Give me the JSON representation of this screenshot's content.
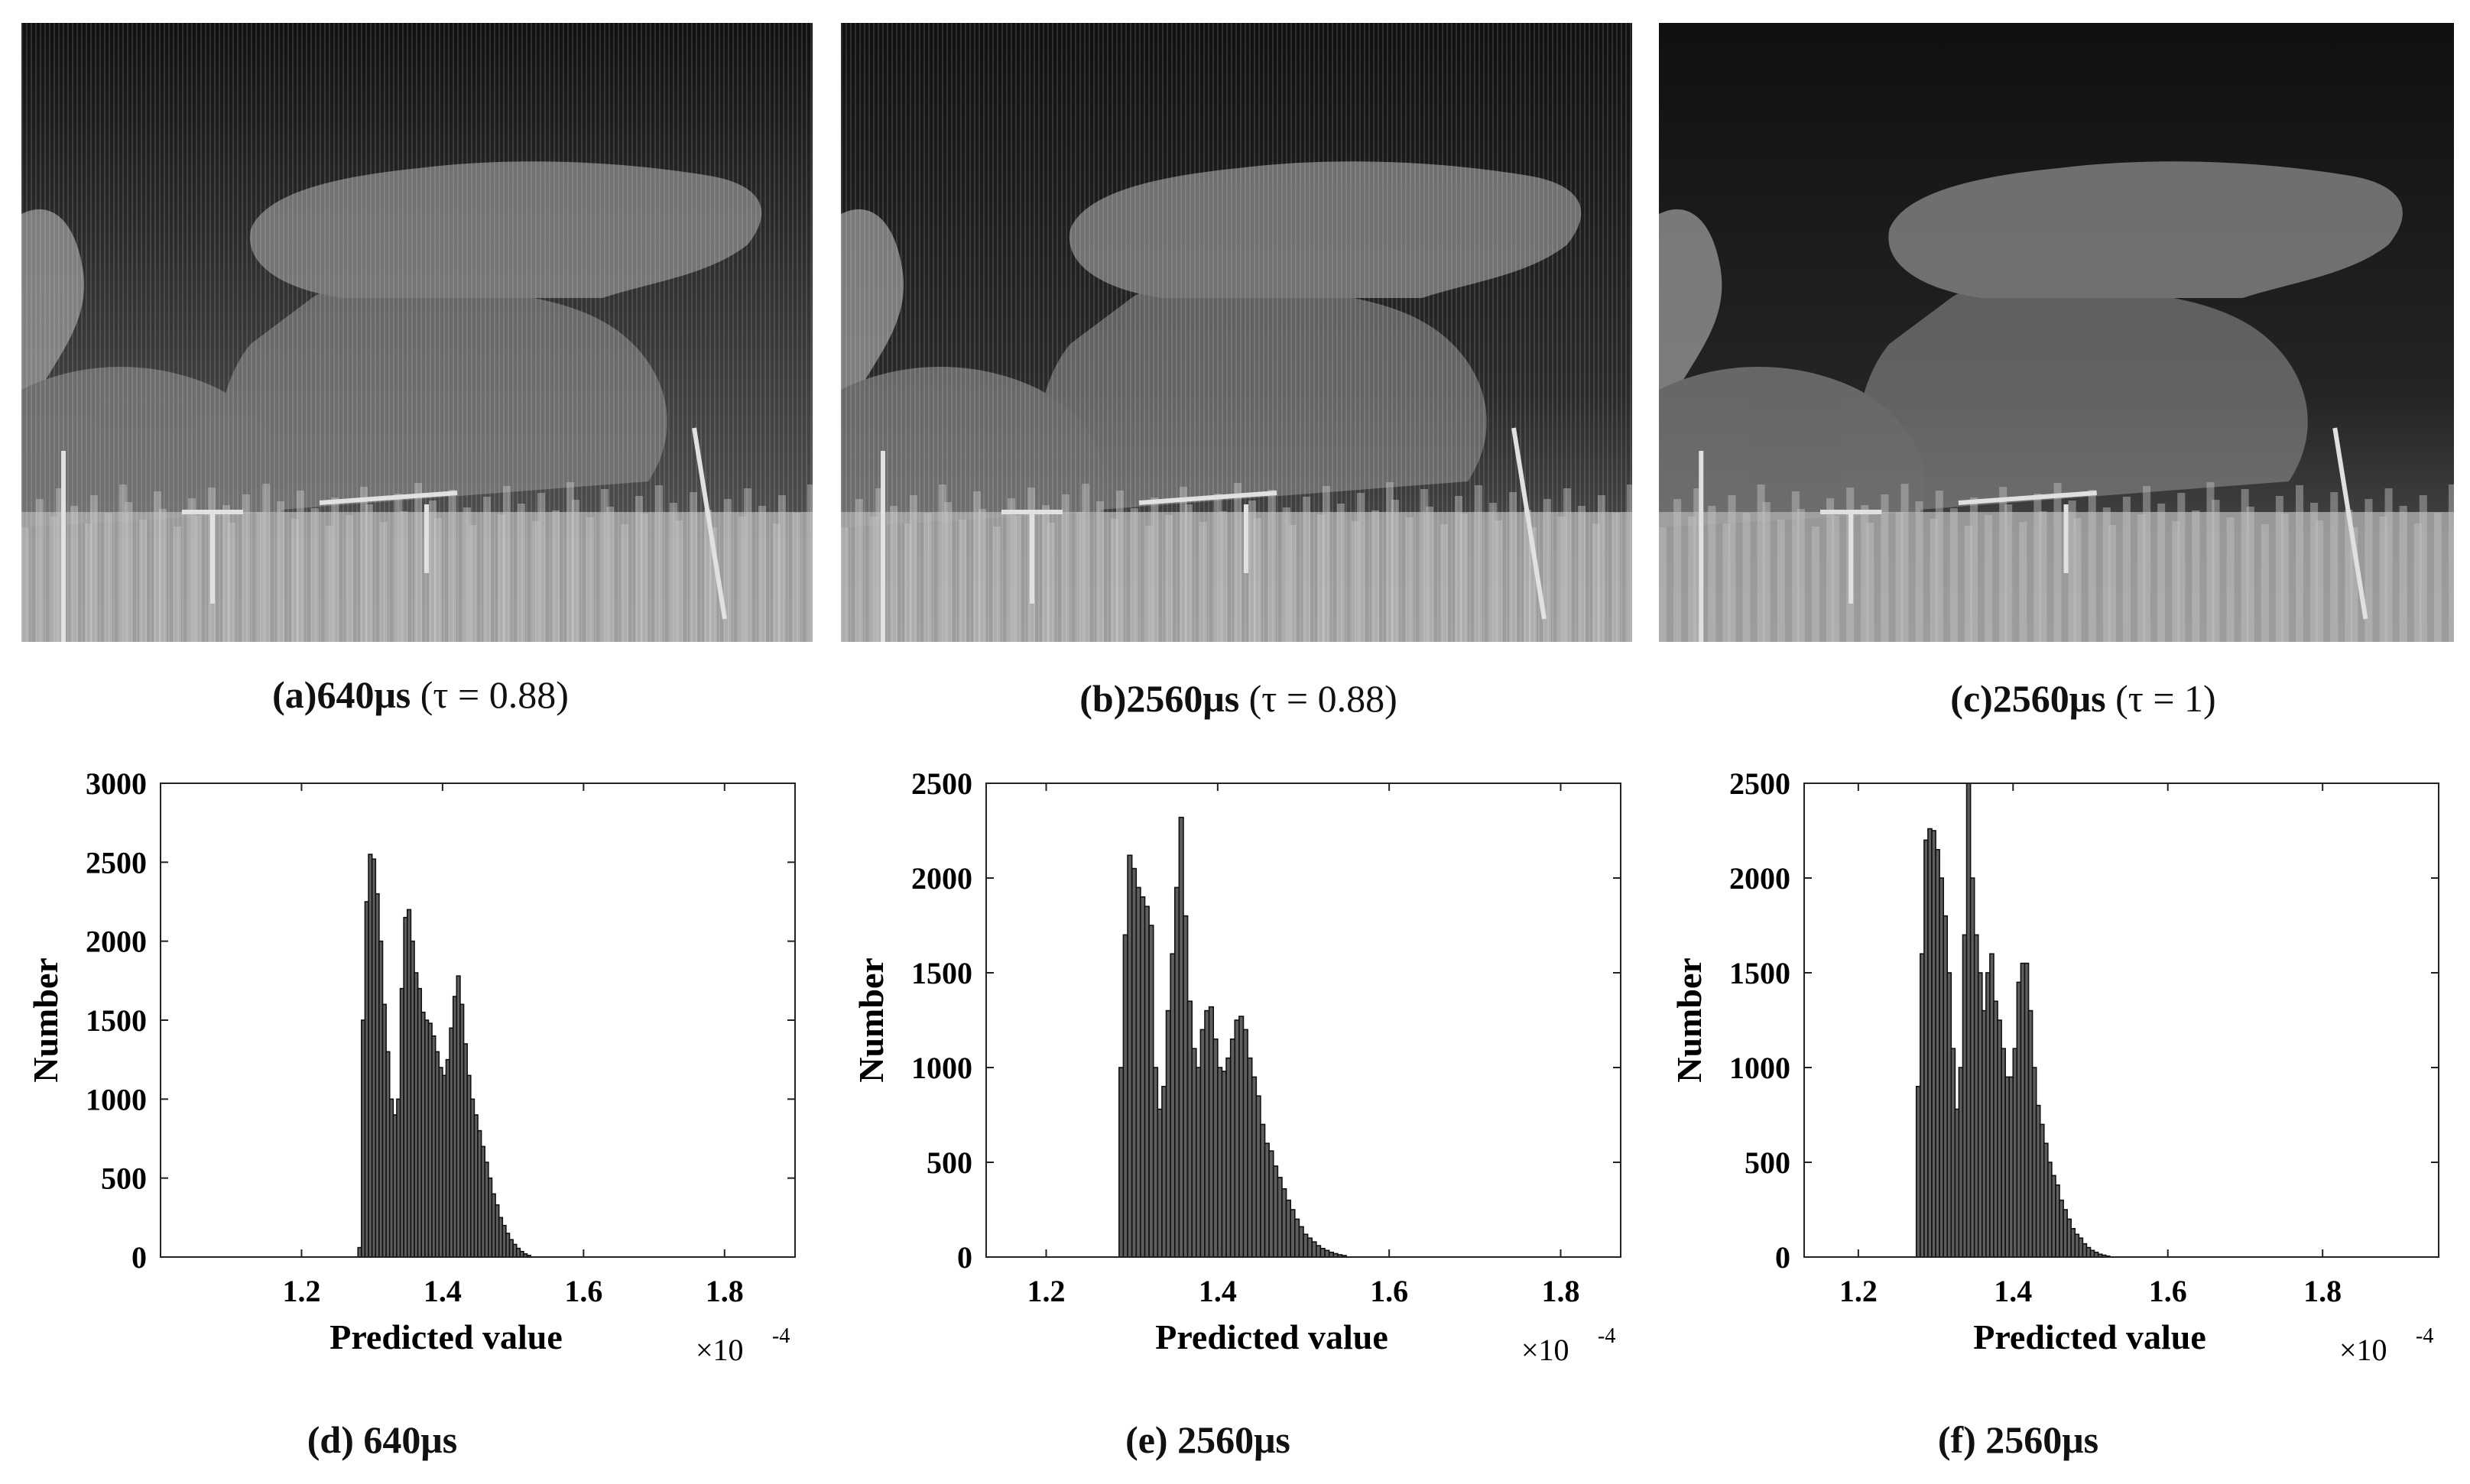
{
  "panels": [
    {
      "id": "a",
      "caption_label": "(a)640μs",
      "caption_tau": "(τ = 0.88)",
      "tone": "#3f3f3f",
      "striped": true
    },
    {
      "id": "b",
      "caption_label": "(b)2560μs",
      "caption_tau": "(τ = 0.88)",
      "tone": "#2a2a2a",
      "striped": true
    },
    {
      "id": "c",
      "caption_label": "(c)2560μs",
      "caption_tau": "(τ = 1)",
      "tone": "#242424",
      "striped": false
    }
  ],
  "chart_data": [
    {
      "id": "d",
      "type": "bar",
      "caption": "(d) 640μs",
      "xlabel": "Predicted value",
      "ylabel": "Number",
      "x_multiplier": "×10",
      "x_exponent": "-4",
      "xlim": [
        1.0,
        1.9
      ],
      "ylim": [
        0,
        3000
      ],
      "xticks": [
        "1.2",
        "1.4",
        "1.6",
        "1.8"
      ],
      "xtick_values": [
        1.2,
        1.4,
        1.6,
        1.8
      ],
      "yticks": [
        "0",
        "500",
        "1000",
        "1500",
        "2000",
        "2500",
        "3000"
      ],
      "ytick_values": [
        0,
        500,
        1000,
        1500,
        2000,
        2500,
        3000
      ],
      "bin_start": 1.28,
      "bin_width": 0.005,
      "values": [
        60,
        1500,
        2250,
        2550,
        2520,
        2300,
        2000,
        1600,
        1300,
        1000,
        900,
        1000,
        1700,
        2150,
        2200,
        2000,
        1800,
        1700,
        1550,
        1500,
        1480,
        1400,
        1300,
        1200,
        1150,
        1250,
        1450,
        1650,
        1780,
        1600,
        1350,
        1150,
        1000,
        900,
        800,
        700,
        600,
        500,
        400,
        330,
        250,
        200,
        150,
        110,
        80,
        55,
        35,
        20,
        10
      ]
    },
    {
      "id": "e",
      "type": "bar",
      "caption": "(e) 2560μs",
      "xlabel": "Predicted value",
      "ylabel": "Number",
      "x_multiplier": "×10",
      "x_exponent": "-4",
      "xlim": [
        1.13,
        1.87
      ],
      "ylim": [
        0,
        2500
      ],
      "xticks": [
        "1.2",
        "1.4",
        "1.6",
        "1.8"
      ],
      "xtick_values": [
        1.2,
        1.4,
        1.6,
        1.8
      ],
      "yticks": [
        "0",
        "500",
        "1000",
        "1500",
        "2000",
        "2500"
      ],
      "ytick_values": [
        0,
        500,
        1000,
        1500,
        2000,
        2500
      ],
      "bin_start": 1.285,
      "bin_width": 0.005,
      "values": [
        1000,
        1700,
        2120,
        2050,
        1950,
        1900,
        1850,
        1750,
        1000,
        780,
        900,
        1300,
        1600,
        1950,
        2320,
        1800,
        1350,
        1100,
        1000,
        1200,
        1300,
        1320,
        1150,
        1000,
        980,
        1050,
        1150,
        1250,
        1270,
        1200,
        1050,
        950,
        850,
        700,
        600,
        560,
        480,
        420,
        360,
        300,
        250,
        200,
        160,
        120,
        100,
        80,
        60,
        45,
        35,
        25,
        18,
        12,
        8
      ]
    },
    {
      "id": "f",
      "type": "bar",
      "caption": "(f) 2560μs",
      "xlabel": "Predicted value",
      "ylabel": "Number",
      "x_multiplier": "×10",
      "x_exponent": "-4",
      "xlim": [
        1.13,
        1.95
      ],
      "ylim": [
        0,
        2500
      ],
      "xticks": [
        "1.2",
        "1.4",
        "1.6",
        "1.8"
      ],
      "xtick_values": [
        1.2,
        1.4,
        1.6,
        1.8
      ],
      "yticks": [
        "0",
        "500",
        "1000",
        "1500",
        "2000",
        "2500"
      ],
      "ytick_values": [
        0,
        500,
        1000,
        1500,
        2000,
        2500
      ],
      "bin_start": 1.275,
      "bin_width": 0.005,
      "values": [
        900,
        1600,
        2200,
        2260,
        2250,
        2150,
        2000,
        1800,
        1500,
        1100,
        780,
        1000,
        1700,
        2500,
        2000,
        1700,
        1500,
        1300,
        1500,
        1600,
        1350,
        1250,
        1100,
        950,
        950,
        1100,
        1450,
        1550,
        1550,
        1300,
        1000,
        800,
        700,
        600,
        500,
        430,
        380,
        300,
        250,
        200,
        150,
        120,
        100,
        70,
        50,
        35,
        25,
        15,
        10,
        5
      ]
    }
  ]
}
